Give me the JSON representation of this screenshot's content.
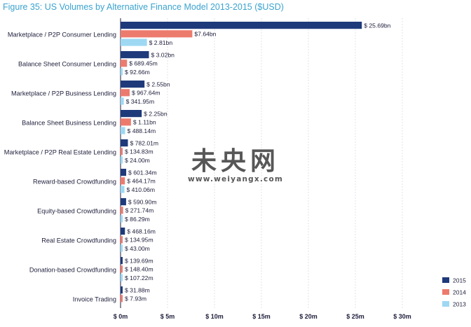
{
  "chart_data": {
    "type": "bar",
    "orientation": "horizontal",
    "title": "Figure 35: US Volumes by Alternative Finance Model 2013-2015 ($USD)",
    "categories": [
      "Marketplace / P2P Consumer Lending",
      "Balance Sheet Consumer Lending",
      "Marketplace / P2P Business Lending",
      "Balance Sheet Business Lending",
      "Marketplace / P2P Real Estate Lending",
      "Reward-based Crowdfunding",
      "Equity-based Crowdfunding",
      "Real Estate Crowdfunding",
      "Donation-based Crowdfunding",
      "Invoice Trading"
    ],
    "series": [
      {
        "name": "2015",
        "color": "#1f3a7a",
        "values": [
          25.69,
          3.02,
          2.55,
          2.25,
          0.78201,
          0.60134,
          0.5909,
          0.46816,
          0.13969,
          0.03188
        ],
        "labels": [
          "$ 25.69bn",
          "$ 3.02bn",
          "$ 2.55bn",
          "$ 2.25bn",
          "$ 782.01m",
          "$ 601.34m",
          "$ 590.90m",
          "$ 468.16m",
          "$ 139.69m",
          "$ 31.88m"
        ]
      },
      {
        "name": "2014",
        "color": "#ec7b6e",
        "values": [
          7.64,
          0.68945,
          0.96764,
          1.11,
          0.13483,
          0.46417,
          0.27174,
          0.13495,
          0.1484,
          0.00793
        ],
        "labels": [
          "$7.64bn",
          "$ 689.45m",
          "$ 967.64m",
          "$ 1.11bn",
          "$ 134.83m",
          "$ 464.17m",
          "$ 271.74m",
          "$ 134.95m",
          "$ 148.40m",
          "$ 7.93m"
        ]
      },
      {
        "name": "2013",
        "color": "#9ed8f3",
        "values": [
          2.81,
          0.09266,
          0.34195,
          0.48814,
          0.024,
          0.41006,
          0.08629,
          0.043,
          0.10722,
          null
        ],
        "labels": [
          "$ 2.81bn",
          "$ 92.66m",
          "$ 341.95m",
          "$ 488.14m",
          "$ 24.00m",
          "$ 410.06m",
          "$ 86.29m",
          "$ 43.00m",
          "$ 107.22m",
          null
        ]
      }
    ],
    "xlim": [
      0,
      30
    ],
    "xunit": "bn",
    "ticks": [
      {
        "value": 0,
        "label": "$ 0m"
      },
      {
        "value": 5,
        "label": "$ 5m"
      },
      {
        "value": 10,
        "label": "$ 10m"
      },
      {
        "value": 15,
        "label": "$ 15m"
      },
      {
        "value": 20,
        "label": "$ 20m"
      },
      {
        "value": 25,
        "label": "$ 25m"
      },
      {
        "value": 30,
        "label": "$ 30m"
      }
    ],
    "grid": true,
    "legend_position": "bottom-right"
  },
  "watermark": {
    "chars": "未央网",
    "url": "www.weiyangx.com"
  }
}
